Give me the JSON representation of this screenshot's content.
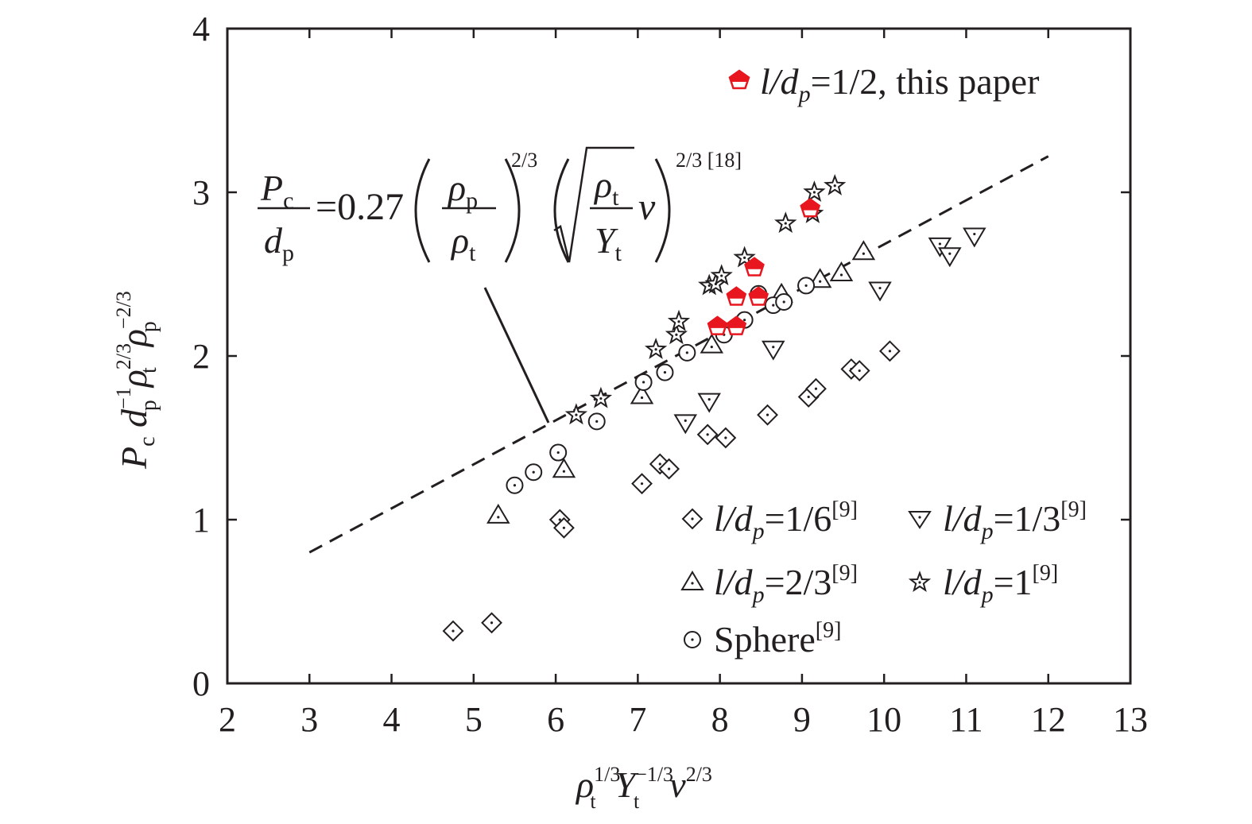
{
  "chart_data": {
    "type": "scatter",
    "title": "",
    "xlabel": "ρt^{1/3} Yt^{−1/3} v^{2/3}",
    "ylabel": "Pc dp^{−1} ρt^{2/3} ρp^{−2/3}",
    "xlim": [
      2,
      13
    ],
    "ylim": [
      0,
      4
    ],
    "xticks": [
      2,
      3,
      4,
      5,
      6,
      7,
      8,
      9,
      10,
      11,
      12,
      13
    ],
    "yticks": [
      0,
      1,
      2,
      3,
      4
    ],
    "grid": false,
    "series": [
      {
        "name": "l/dp=1/2, this paper",
        "marker": "pentagon",
        "color": "#e8161e",
        "x": [
          7.97,
          8.2,
          8.2,
          8.42,
          8.47,
          9.1
        ],
        "y": [
          2.18,
          2.18,
          2.36,
          2.54,
          2.36,
          2.9
        ]
      },
      {
        "name": "l/dp=1/6[9]",
        "marker": "diamond",
        "color": "#231f20",
        "x": [
          4.75,
          5.22,
          6.05,
          6.1,
          7.05,
          7.27,
          7.38,
          7.85,
          8.07,
          8.58,
          9.08,
          9.17,
          9.6,
          9.7,
          10.07
        ],
        "y": [
          0.32,
          0.37,
          1.0,
          0.95,
          1.22,
          1.34,
          1.31,
          1.52,
          1.5,
          1.64,
          1.75,
          1.8,
          1.92,
          1.91,
          2.03
        ]
      },
      {
        "name": "l/dp=1/3[9]",
        "marker": "triangle-down",
        "color": "#231f20",
        "x": [
          7.58,
          7.87,
          8.65,
          9.95,
          10.68,
          10.8,
          11.1
        ],
        "y": [
          1.6,
          1.73,
          2.05,
          2.41,
          2.68,
          2.62,
          2.74
        ]
      },
      {
        "name": "l/dp=2/3[9]",
        "marker": "triangle-up",
        "color": "#231f20",
        "x": [
          5.3,
          6.1,
          7.05,
          7.9,
          8.75,
          9.22,
          9.48,
          9.75
        ],
        "y": [
          1.02,
          1.3,
          1.75,
          2.06,
          2.37,
          2.46,
          2.5,
          2.63
        ]
      },
      {
        "name": "l/dp=1[9]",
        "marker": "star",
        "color": "#231f20",
        "x": [
          6.25,
          6.55,
          7.22,
          7.47,
          7.5,
          7.87,
          7.95,
          8.02,
          8.3,
          8.8,
          9.13,
          9.15,
          9.4
        ],
        "y": [
          1.64,
          1.74,
          2.04,
          2.13,
          2.21,
          2.43,
          2.44,
          2.49,
          2.6,
          2.81,
          2.87,
          3.0,
          3.04
        ]
      },
      {
        "name": "Sphere[9]",
        "marker": "circle-dot",
        "color": "#231f20",
        "x": [
          5.5,
          5.73,
          6.03,
          6.5,
          7.07,
          7.33,
          7.6,
          8.05,
          8.3,
          8.47,
          8.65,
          8.78,
          9.05
        ],
        "y": [
          1.21,
          1.29,
          1.41,
          1.6,
          1.84,
          1.9,
          2.02,
          2.13,
          2.22,
          2.38,
          2.31,
          2.33,
          2.43
        ]
      }
    ],
    "fit_line": {
      "style": "dashed",
      "x": [
        3,
        12
      ],
      "y": [
        0.8,
        3.22
      ],
      "equation": {
        "lhs_num": "P",
        "lhs_num_sub": "c",
        "lhs_den": "d",
        "lhs_den_sub": "p",
        "coef": "=0.27",
        "rho": "ρ",
        "sub_p": "p",
        "sub_t": "t",
        "Y": "Y",
        "v": "v",
        "exp1": "2/3",
        "exp2": "2/3 [18]"
      }
    },
    "legend": {
      "top_label": {
        "pre": "l/d",
        "sub": "p",
        "post": "=1/2, this paper"
      },
      "l16": {
        "pre": "l/d",
        "sub": "p",
        "post": "=1/6",
        "sup": "[9]"
      },
      "l13": {
        "pre": "l/d",
        "sub": "p",
        "post": "=1/3",
        "sup": "[9]"
      },
      "l23": {
        "pre": "l/d",
        "sub": "p",
        "post": "=2/3",
        "sup": "[9]"
      },
      "l1": {
        "pre": "l/d",
        "sub": "p",
        "post": "=1",
        "sup": "[9]"
      },
      "sphere": {
        "pre": "Sphere",
        "sup": "[9]"
      }
    },
    "axis_text": {
      "x": {
        "rho": "ρ",
        "rho_sup": "1/3",
        "rho_sub": "t",
        "Y": "Y",
        "Y_sup": "−1/3",
        "Y_sub": "t",
        "v": "v",
        "v_sup": "2/3"
      },
      "y": {
        "P": "P",
        "P_sub": "c",
        "d": " d",
        "d_sup": "−1",
        "d_sub": "p",
        "rt": "ρ",
        "rt_sup": "2/3",
        "rt_sub": "t",
        "rp": "ρ",
        "rp_sup": "−2/3",
        "rp_sub": "p"
      }
    }
  }
}
